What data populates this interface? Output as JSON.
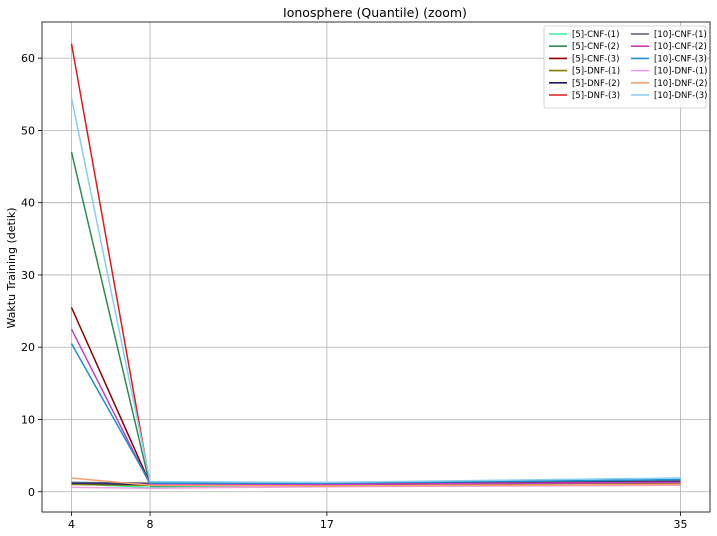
{
  "chart_data": {
    "type": "line",
    "title": "Ionosphere (Quantile) (zoom)",
    "xlabel": "",
    "ylabel": "Waktu Training (detik)",
    "x": [
      4,
      8,
      17,
      35
    ],
    "x_tick_labels": [
      "4",
      "8",
      "17",
      "35"
    ],
    "y_ticks": [
      0,
      10,
      20,
      30,
      40,
      50,
      60
    ],
    "xlim": [
      2.5,
      36.5
    ],
    "ylim": [
      -2.8,
      65
    ],
    "grid": true,
    "legend_position": "top-right",
    "series": [
      {
        "name": "[5]-CNF-(1)",
        "color": "#3cf0a0",
        "values": [
          1.1,
          0.6,
          0.9,
          1.3
        ]
      },
      {
        "name": "[5]-CNF-(2)",
        "color": "#2e8b57",
        "values": [
          47.0,
          0.8,
          1.0,
          1.5
        ]
      },
      {
        "name": "[5]-CNF-(3)",
        "color": "#8b0000",
        "values": [
          25.5,
          1.1,
          1.1,
          1.4
        ]
      },
      {
        "name": "[5]-DNF-(1)",
        "color": "#808000",
        "values": [
          1.0,
          0.9,
          1.0,
          1.2
        ]
      },
      {
        "name": "[5]-DNF-(2)",
        "color": "#191970",
        "values": [
          1.2,
          1.0,
          1.1,
          1.4
        ]
      },
      {
        "name": "[5]-DNF-(3)",
        "color": "#e31a1c",
        "values": [
          62.0,
          1.0,
          1.0,
          1.3
        ]
      },
      {
        "name": "[10]-CNF-(1)",
        "color": "#5a5a78",
        "values": [
          1.3,
          1.2,
          1.2,
          1.6
        ]
      },
      {
        "name": "[10]-CNF-(2)",
        "color": "#c040c0",
        "values": [
          22.5,
          1.0,
          1.0,
          1.3
        ]
      },
      {
        "name": "[10]-CNF-(3)",
        "color": "#1e8fd0",
        "values": [
          20.5,
          1.2,
          1.2,
          1.7
        ]
      },
      {
        "name": "[10]-DNF-(1)",
        "color": "#f0a0e0",
        "values": [
          0.6,
          0.5,
          0.7,
          0.9
        ]
      },
      {
        "name": "[10]-DNF-(2)",
        "color": "#f4a070",
        "values": [
          1.9,
          0.9,
          0.8,
          1.0
        ]
      },
      {
        "name": "[10]-DNF-(3)",
        "color": "#87cef0",
        "values": [
          54.5,
          1.4,
          1.3,
          1.9
        ]
      }
    ]
  }
}
